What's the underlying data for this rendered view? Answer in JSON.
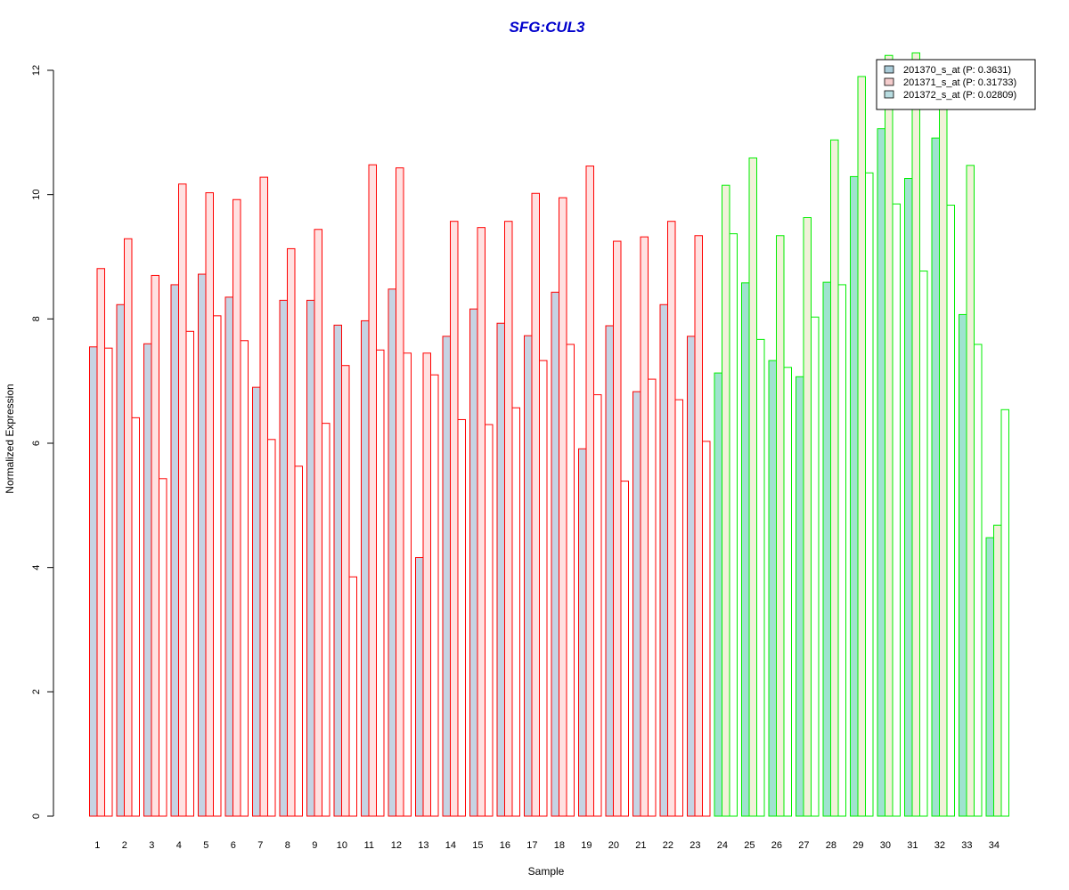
{
  "chart_data": {
    "type": "bar",
    "title": "SFG:CUL3",
    "xlabel": "Sample",
    "ylabel": "Normalized Expression",
    "ylim": [
      0,
      12
    ],
    "yticks": [
      "0",
      "2",
      "4",
      "6",
      "8",
      "10",
      "12"
    ],
    "grid": false,
    "legend_position": "top-right",
    "categories": [
      "1",
      "2",
      "3",
      "4",
      "5",
      "6",
      "7",
      "8",
      "9",
      "10",
      "11",
      "12",
      "13",
      "14",
      "15",
      "16",
      "17",
      "18",
      "19",
      "20",
      "21",
      "22",
      "23",
      "24",
      "25",
      "26",
      "27",
      "28",
      "29",
      "30",
      "31",
      "32",
      "33",
      "34"
    ],
    "group_colors": {
      "samples_1_23": "#ff0000",
      "samples_24_34": "#00ee00"
    },
    "series": [
      {
        "name": "201370_s_at (P: 0.3631)",
        "values": [
          7.55,
          8.23,
          7.6,
          8.55,
          8.72,
          8.35,
          6.9,
          8.3,
          8.3,
          7.9,
          7.97,
          8.48,
          4.16,
          7.72,
          8.16,
          7.93,
          7.73,
          8.43,
          5.91,
          7.89,
          6.83,
          8.23,
          7.72,
          7.13,
          8.58,
          7.33,
          7.07,
          8.59,
          10.29,
          11.06,
          10.26,
          10.91,
          8.07,
          4.48
        ],
        "fill_group_1": "#c6d3e3",
        "fill_group_2": "#9fe3cf",
        "legend_swatch": "#a9cbd8"
      },
      {
        "name": "201371_s_at (P: 0.31733)",
        "values": [
          8.81,
          9.29,
          8.7,
          10.17,
          10.03,
          9.92,
          10.28,
          9.13,
          9.44,
          7.25,
          10.48,
          10.43,
          7.45,
          9.57,
          9.47,
          9.57,
          10.02,
          9.95,
          10.46,
          9.25,
          9.32,
          9.57,
          9.34,
          10.15,
          10.59,
          9.34,
          9.63,
          10.88,
          11.9,
          12.24,
          12.28,
          11.4,
          10.47,
          4.68
        ],
        "fill_group_1": "#ffe1e1",
        "fill_group_2": "#f1f1d9",
        "legend_swatch": "#f4cccc"
      },
      {
        "name": "201372_s_at (P: 0.02809)",
        "values": [
          7.53,
          6.41,
          5.43,
          7.8,
          8.05,
          7.65,
          6.06,
          5.63,
          6.32,
          3.85,
          7.5,
          7.45,
          7.1,
          6.38,
          6.3,
          6.57,
          7.33,
          7.59,
          6.78,
          5.39,
          7.03,
          6.7,
          6.03,
          9.37,
          7.67,
          7.22,
          8.03,
          8.55,
          10.35,
          9.85,
          8.77,
          9.83,
          7.59,
          6.54
        ],
        "fill_group_1": "#ffffff",
        "fill_group_2": "#ffffff",
        "legend_swatch": "#b8dce0"
      }
    ]
  }
}
